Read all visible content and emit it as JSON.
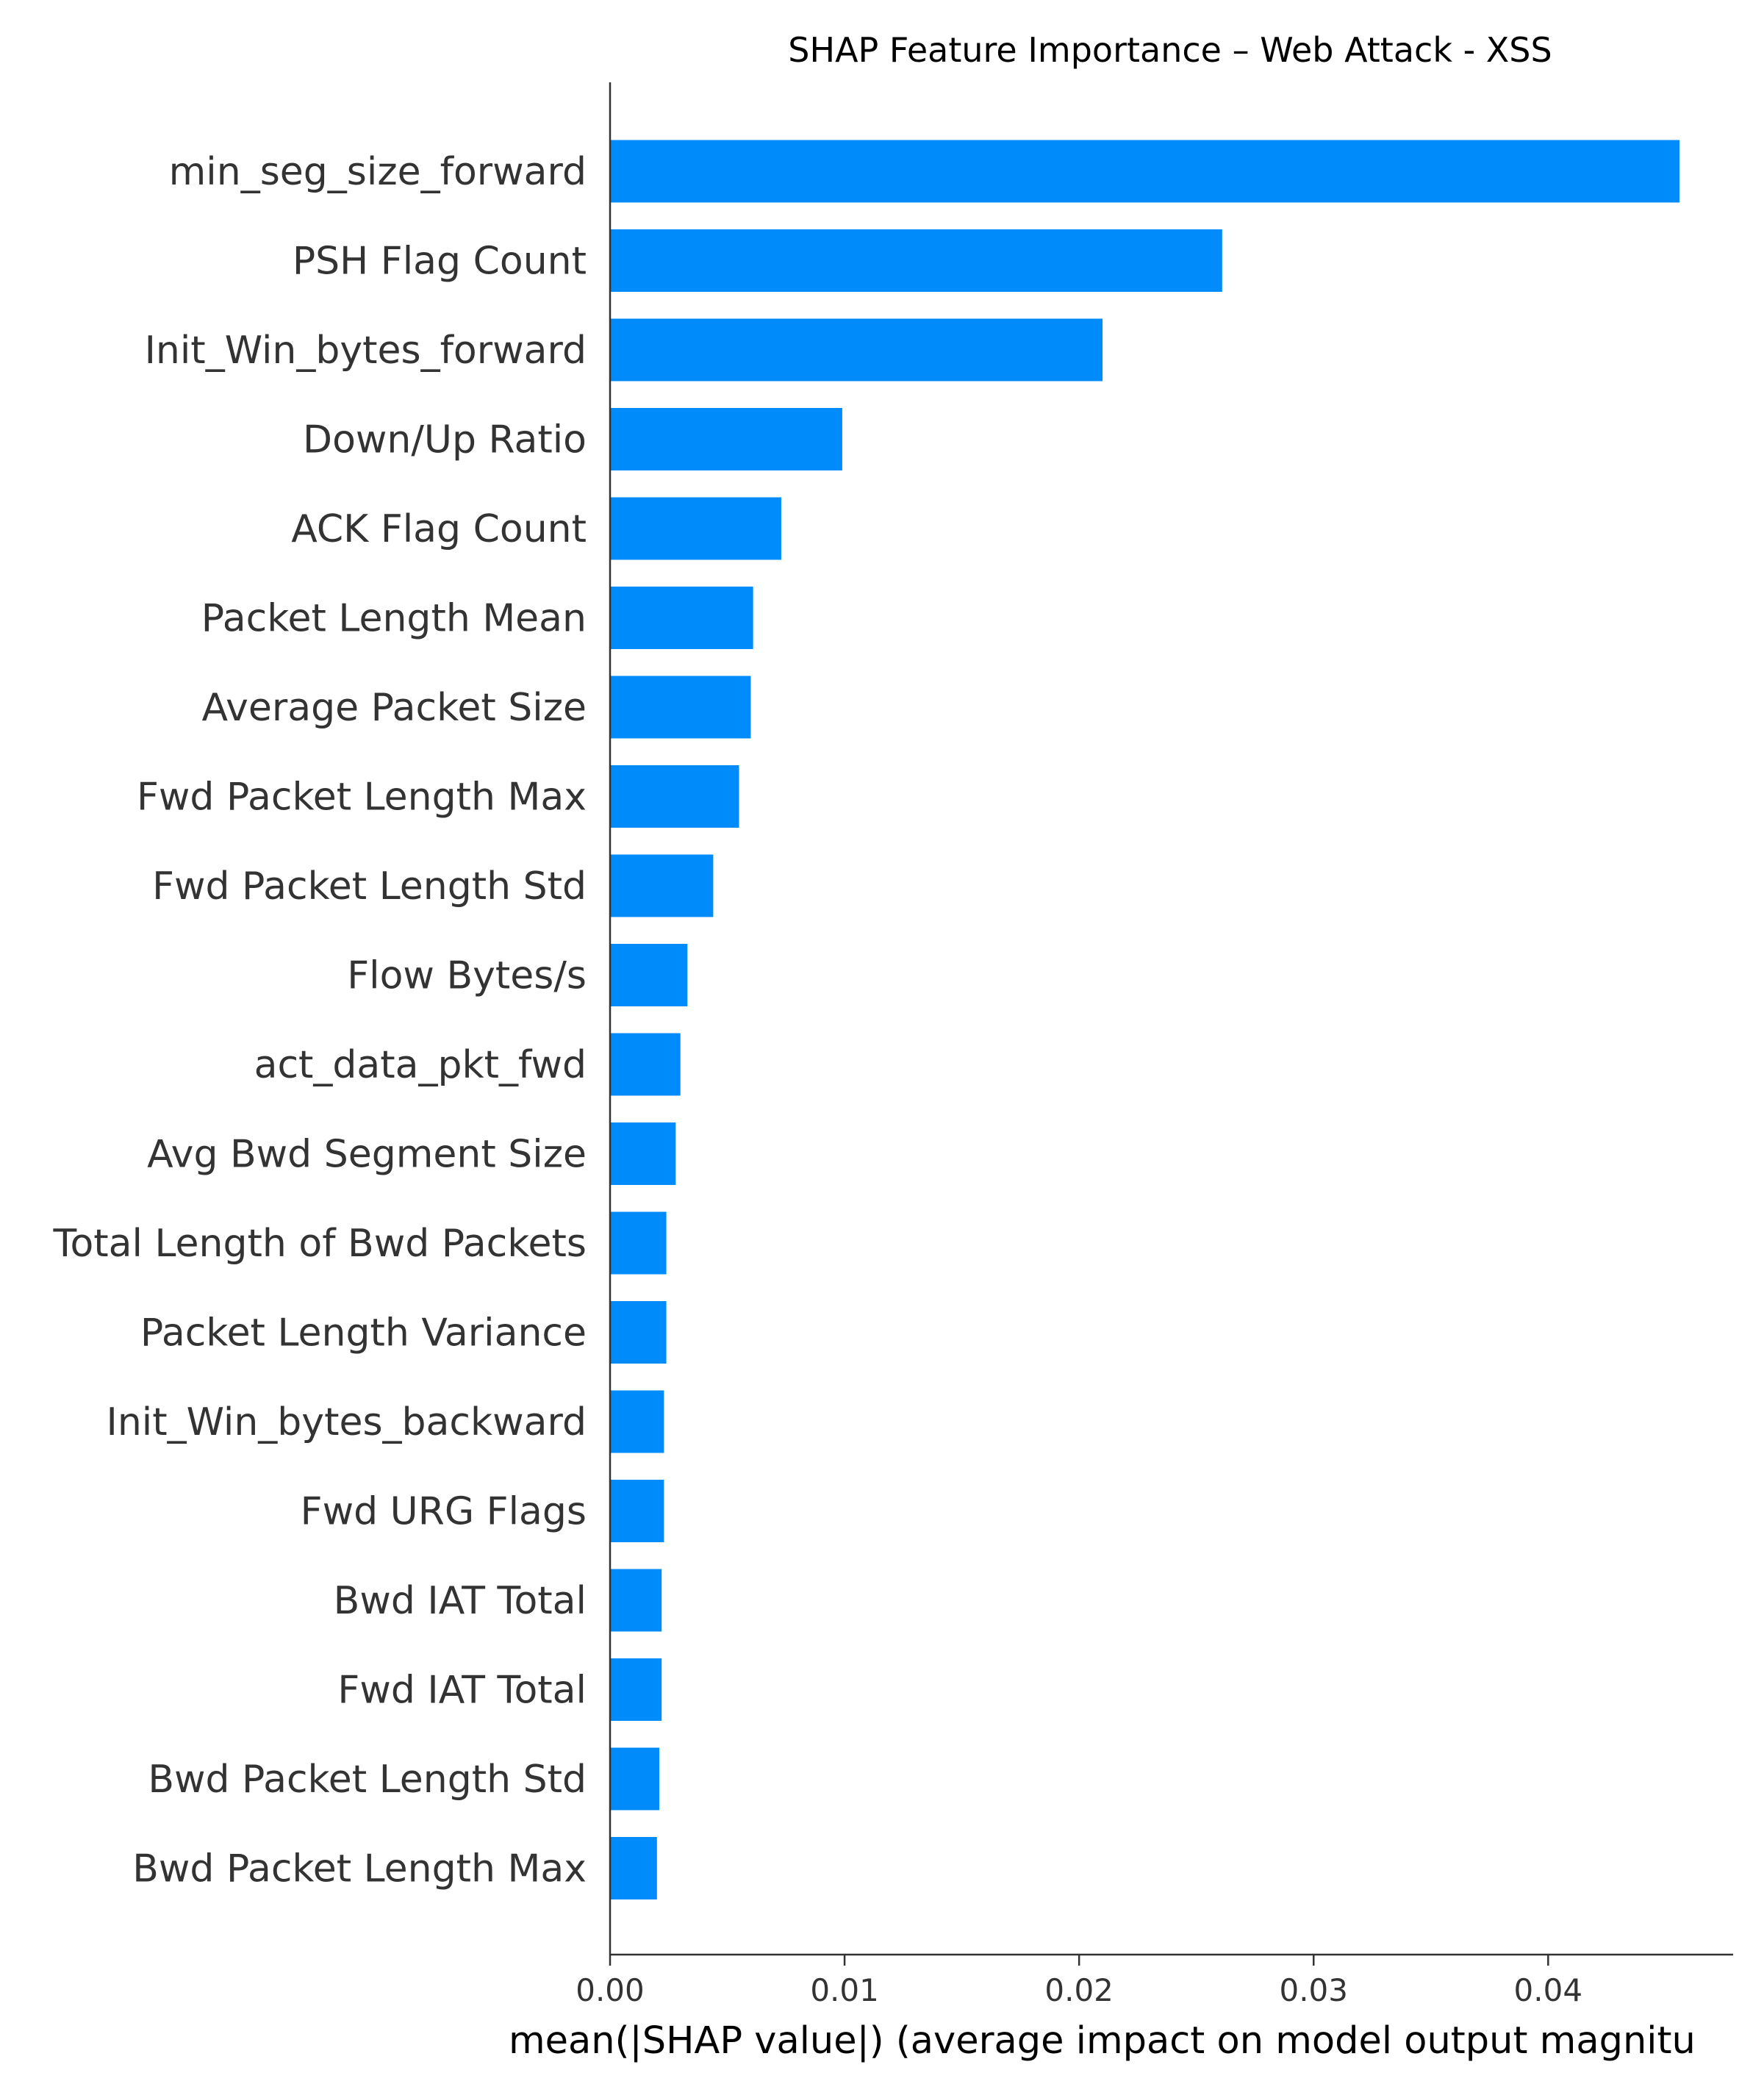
{
  "chart_data": {
    "type": "bar",
    "orientation": "horizontal",
    "title": "SHAP Feature Importance – Web Attack - XSS",
    "xlabel": "mean(|SHAP value|) (average impact on model output magnitu",
    "ylabel": "",
    "categories": [
      "min_seg_size_forward",
      "PSH Flag Count",
      "Init_Win_bytes_forward",
      "Down/Up Ratio",
      "ACK Flag Count",
      "Packet Length Mean",
      "Average Packet Size",
      "Fwd Packet Length Max",
      "Fwd Packet Length Std",
      "Flow Bytes/s",
      "act_data_pkt_fwd",
      "Avg Bwd Segment Size",
      "Total Length of Bwd Packets",
      "Packet Length Variance",
      "Init_Win_bytes_backward",
      "Fwd URG Flags",
      "Bwd IAT Total",
      "Fwd IAT Total",
      "Bwd Packet Length Std",
      "Bwd Packet Length Max"
    ],
    "values": [
      0.0456,
      0.0261,
      0.021,
      0.0099,
      0.0073,
      0.0061,
      0.006,
      0.0055,
      0.0044,
      0.0033,
      0.003,
      0.0028,
      0.0024,
      0.0024,
      0.0023,
      0.0023,
      0.0022,
      0.0022,
      0.0021,
      0.002
    ],
    "xlim": [
      0,
      0.048
    ],
    "xticks": [
      0.0,
      0.01,
      0.02,
      0.03,
      0.04
    ],
    "xtick_labels": [
      "0.00",
      "0.01",
      "0.02",
      "0.03",
      "0.04"
    ],
    "grid": false,
    "legend": "none",
    "bar_color": "#008bfb",
    "axis_color": "#333333"
  }
}
